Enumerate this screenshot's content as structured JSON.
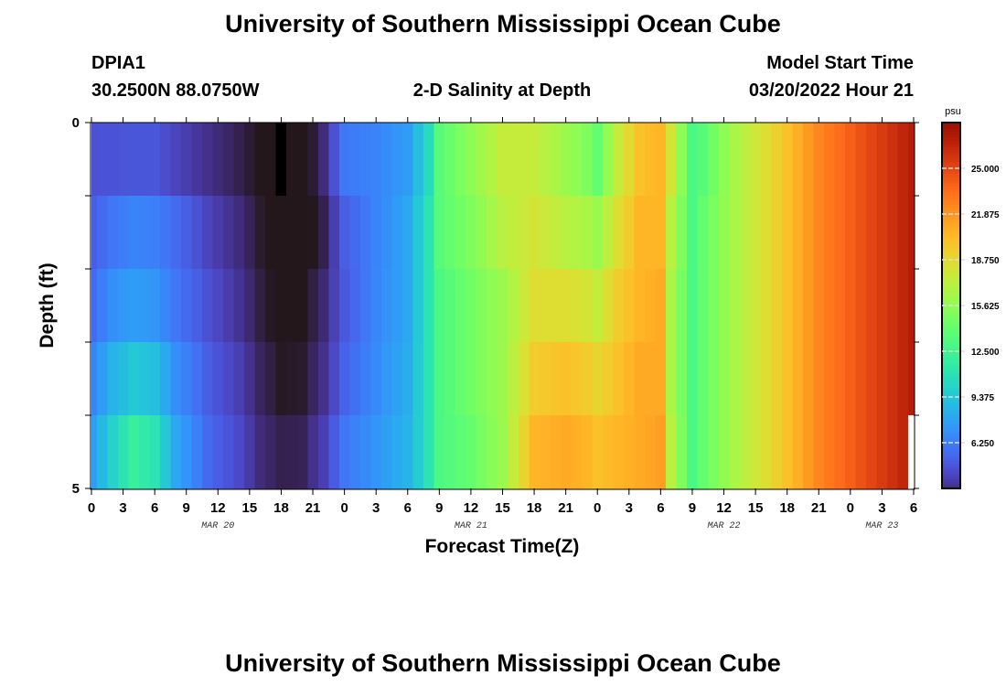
{
  "page": {
    "title": "University of Southern Mississippi Ocean Cube",
    "footer_title": "University of Southern Mississippi Ocean Cube"
  },
  "station": {
    "id": "DPIA1",
    "coords": "30.2500N  88.0750W"
  },
  "chart_title": "2-D Salinity at Depth",
  "model_start": {
    "label": "Model Start Time",
    "value": "03/20/2022 Hour 21"
  },
  "chart_data": {
    "type": "heatmap",
    "xlabel": "Forecast Time(Z)",
    "ylabel": "Depth (ft)",
    "x_ticks": [
      "0",
      "3",
      "6",
      "9",
      "12",
      "15",
      "18",
      "21",
      "0",
      "3",
      "6",
      "9",
      "12",
      "15",
      "18",
      "21",
      "0",
      "3",
      "6",
      "9",
      "12",
      "15",
      "18",
      "21",
      "0",
      "3",
      "6"
    ],
    "x_hours": [
      0,
      3,
      6,
      9,
      12,
      15,
      18,
      21,
      24,
      27,
      30,
      33,
      36,
      39,
      42,
      45,
      48,
      51,
      54,
      57,
      60,
      63,
      66,
      69,
      72,
      75,
      78
    ],
    "x_range_hours": [
      0,
      78
    ],
    "day_labels": [
      {
        "text": "MAR 20",
        "hour": 12
      },
      {
        "text": "MAR 21",
        "hour": 36
      },
      {
        "text": "MAR 22",
        "hour": 60
      },
      {
        "text": "MAR 23",
        "hour": 75
      }
    ],
    "y_range": [
      0,
      5
    ],
    "y_tick_labels": [
      "0",
      "5"
    ],
    "y_minor_ticks": [
      1,
      2,
      3,
      4
    ],
    "depth_rows": 5,
    "hours_per_column": 1,
    "salinity_keyframes": [
      [
        0,
        4.5,
        5.0,
        5.5,
        6.5,
        7.5
      ],
      [
        2,
        4.6,
        6.0,
        7.0,
        8.5,
        10.0
      ],
      [
        4,
        4.7,
        6.5,
        7.5,
        9.5,
        12.0
      ],
      [
        6,
        4.7,
        6.3,
        7.2,
        9.0,
        11.0
      ],
      [
        8,
        4.0,
        5.5,
        6.0,
        7.0,
        8.0
      ],
      [
        11,
        3.2,
        4.0,
        4.5,
        5.0,
        5.5
      ],
      [
        14,
        2.5,
        3.0,
        3.3,
        3.8,
        4.2
      ],
      [
        16,
        2.0,
        2.2,
        2.4,
        2.7,
        3.0
      ],
      [
        18,
        1.6,
        1.5,
        1.8,
        2.1,
        2.5
      ],
      [
        20,
        1.5,
        1.6,
        1.9,
        2.2,
        2.6
      ],
      [
        22,
        3.0,
        2.5,
        2.9,
        3.2,
        3.8
      ],
      [
        24,
        6.0,
        5.0,
        4.8,
        5.2,
        6.0
      ],
      [
        27,
        6.5,
        6.5,
        6.6,
        6.8,
        7.2
      ],
      [
        30,
        7.5,
        8.0,
        8.0,
        8.2,
        8.5
      ],
      [
        32,
        10.5,
        11.0,
        11.0,
        11.0,
        11.0
      ],
      [
        33,
        13.5,
        13.5,
        13.0,
        13.0,
        13.0
      ],
      [
        36,
        15.5,
        15.0,
        14.5,
        14.5,
        14.0
      ],
      [
        39,
        17.5,
        17.0,
        16.0,
        16.0,
        16.0
      ],
      [
        42,
        17.5,
        18.0,
        18.5,
        19.5,
        20.5
      ],
      [
        45,
        16.0,
        17.0,
        18.5,
        20.0,
        21.0
      ],
      [
        47,
        15.0,
        16.5,
        18.0,
        19.5,
        20.5
      ],
      [
        48,
        14.0,
        16.0,
        17.5,
        19.0,
        20.0
      ],
      [
        50,
        17.5,
        18.5,
        19.5,
        20.0,
        20.5
      ],
      [
        52,
        20.0,
        20.5,
        20.5,
        21.0,
        21.0
      ],
      [
        54,
        20.5,
        20.5,
        21.0,
        21.0,
        21.5
      ],
      [
        55,
        18.0,
        17.0,
        16.5,
        16.5,
        17.0
      ],
      [
        57,
        13.0,
        13.0,
        13.0,
        13.0,
        13.0
      ],
      [
        58,
        13.5,
        14.0,
        14.0,
        14.0,
        14.0
      ],
      [
        61,
        16.5,
        16.5,
        16.5,
        16.5,
        16.5
      ],
      [
        64,
        18.5,
        18.5,
        18.5,
        18.5,
        18.5
      ],
      [
        66,
        20.0,
        20.0,
        20.0,
        20.0,
        20.0
      ],
      [
        69,
        22.5,
        22.5,
        22.5,
        22.5,
        22.5
      ],
      [
        72,
        24.0,
        24.0,
        24.0,
        24.0,
        24.0
      ],
      [
        75,
        25.5,
        25.5,
        25.5,
        25.5,
        25.5
      ],
      [
        78,
        27.0,
        27.0,
        27.0,
        27.0,
        27.0
      ]
    ],
    "missing_cells": [
      {
        "hour": 18,
        "row": 0,
        "color": "#000000"
      },
      {
        "hour": 78,
        "row": 4,
        "color": "#ffffff"
      }
    ],
    "colorbar": {
      "unit": "psu",
      "tick_values": [
        6.25,
        9.375,
        12.5,
        15.625,
        18.75,
        21.875,
        25.0
      ],
      "tick_labels": [
        "6.250",
        "9.375",
        "12.500",
        "15.625",
        "18.750",
        "21.875",
        "25.000"
      ],
      "range": [
        3.125,
        28.125
      ],
      "colormap": "turbo"
    }
  }
}
